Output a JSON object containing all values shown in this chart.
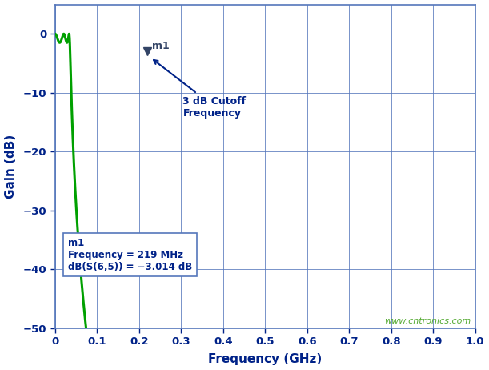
{
  "title": "",
  "xlabel": "Frequency (GHz)",
  "ylabel": "Gain (dB)",
  "xlim": [
    0,
    1.0
  ],
  "ylim": [
    -50,
    5
  ],
  "xticks": [
    0,
    0.1,
    0.2,
    0.3,
    0.4,
    0.5,
    0.6,
    0.7,
    0.8,
    0.9,
    1.0
  ],
  "yticks": [
    0,
    -10,
    -20,
    -30,
    -40,
    -50
  ],
  "line_color": "#00a000",
  "marker_color": "#334466",
  "bg_color": "#ffffff",
  "grid_color": "#5577bb",
  "axis_label_color": "#002288",
  "annotation_color": "#002288",
  "watermark": "www.cntronics.com",
  "watermark_color": "#55aa33",
  "legend_text_line1": "m1",
  "legend_text_line2": "Frequency = 219 MHz",
  "legend_text_line3": "dB(S(6,5)) = −3.014 dB",
  "cutoff_freq": 0.219,
  "cutoff_gain": -3.014,
  "annotation_text": "3 dB Cutoff\nFrequency"
}
